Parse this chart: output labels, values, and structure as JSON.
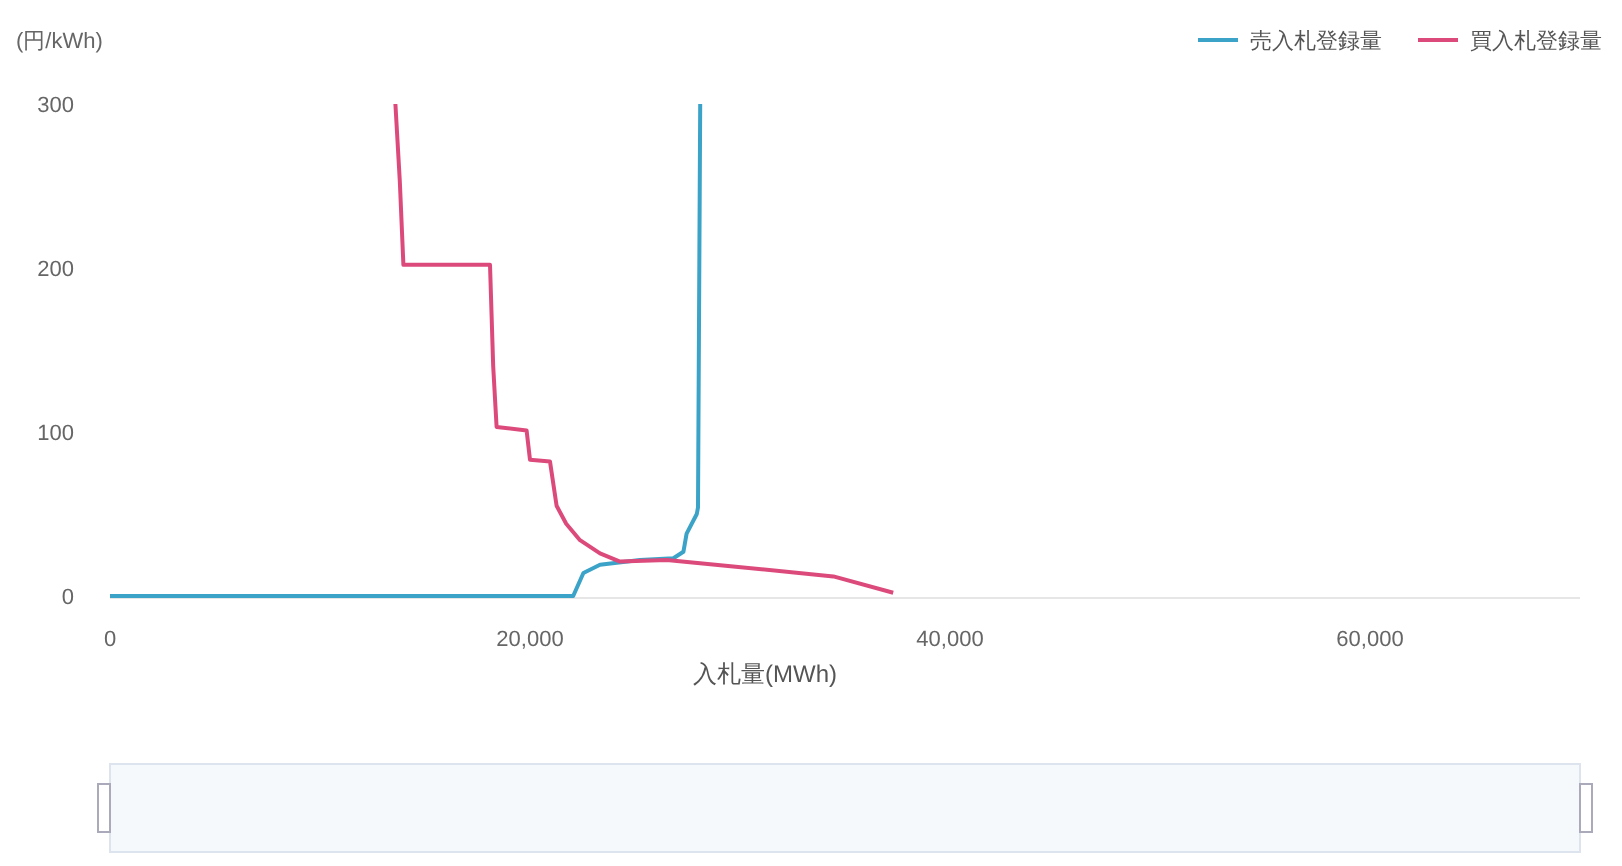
{
  "chart_data": {
    "type": "line",
    "ylabel": "(円/kWh)",
    "xlabel": "入札量(MWh)",
    "xlim": [
      0,
      70000
    ],
    "xticks": [
      0,
      {
        "value": 20000,
        "label": "20,000"
      },
      {
        "value": 40000,
        "label": "40,000"
      },
      {
        "value": 60000,
        "label": "60,000"
      }
    ],
    "ylim": [
      0,
      300
    ],
    "yticks": [
      0,
      100,
      200,
      300
    ],
    "grid": false,
    "legend": "top right",
    "marker": "none",
    "line_style": "solid",
    "series": [
      {
        "name": "売入札登録量",
        "color": "#3ba3c7",
        "x": [
          0,
          22060,
          22540,
          23330,
          25240,
          26830,
          27300,
          27460,
          27940,
          28000,
          28100
        ],
        "values": [
          0,
          0,
          14,
          19,
          22,
          23,
          27,
          38,
          50,
          54,
          300
        ]
      },
      {
        "name": "買入札登録量",
        "color": "#dc4a7c",
        "x": [
          13590,
          13800,
          13970,
          18095,
          18250,
          18410,
          19840,
          20000,
          20950,
          21270,
          21720,
          22380,
          23330,
          24290,
          26510,
          29680,
          34450,
          37300
        ],
        "values": [
          300,
          253,
          202,
          202,
          140,
          103,
          101,
          83,
          82,
          55,
          44,
          34,
          26,
          21,
          22,
          18,
          12,
          2
        ]
      }
    ]
  }
}
